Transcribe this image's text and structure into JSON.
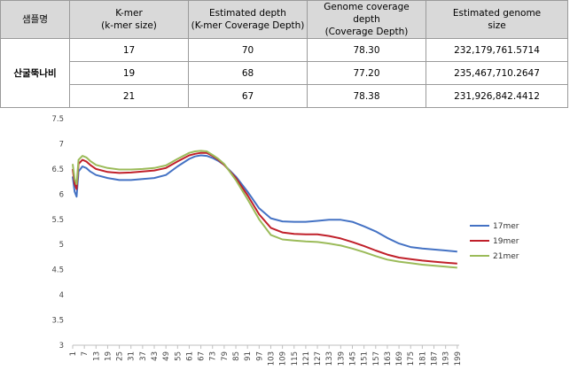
{
  "table": {
    "headers": [
      {
        "line1": "샘플명",
        "line2": ""
      },
      {
        "line1": "K-mer",
        "line2": "(k-mer size)"
      },
      {
        "line1": "Estimated depth",
        "line2": "(K-mer Coverage Depth)"
      },
      {
        "line1": "Genome coverage depth",
        "line2": "(Coverage Depth)"
      },
      {
        "line1": "Estimated genome",
        "line2": "size"
      }
    ],
    "sample": "산굴뚝나비",
    "rows": [
      {
        "kmer": "17",
        "depth": "70",
        "coverage": "78.30",
        "size": "232,179,761.5714"
      },
      {
        "kmer": "19",
        "depth": "68",
        "coverage": "77.20",
        "size": "235,467,710.2647"
      },
      {
        "kmer": "21",
        "depth": "67",
        "coverage": "78.38",
        "size": "231,926,842.4412"
      }
    ]
  },
  "chart_data": {
    "type": "line",
    "title": "",
    "xlabel": "",
    "ylabel": "",
    "ylim": [
      3,
      7.5
    ],
    "yticks": [
      "3",
      "3.5",
      "4",
      "4.5",
      "5",
      "5.5",
      "6",
      "6.5",
      "7",
      "7.5"
    ],
    "xlim": [
      1,
      200
    ],
    "xticks": [
      "1",
      "7",
      "13",
      "19",
      "25",
      "31",
      "37",
      "43",
      "49",
      "55",
      "61",
      "67",
      "73",
      "79",
      "85",
      "91",
      "97",
      "103",
      "109",
      "115",
      "121",
      "127",
      "133",
      "139",
      "145",
      "151",
      "157",
      "163",
      "169",
      "175",
      "181",
      "187",
      "193",
      "199"
    ],
    "grid": false,
    "legend": "right",
    "series": [
      {
        "name": "17mer",
        "color": "#4472c4",
        "x": [
          1,
          2,
          3,
          4,
          6,
          8,
          10,
          13,
          19,
          25,
          31,
          37,
          43,
          49,
          55,
          61,
          64,
          67,
          70,
          73,
          76,
          79,
          85,
          91,
          97,
          103,
          109,
          115,
          121,
          127,
          133,
          139,
          145,
          151,
          157,
          163,
          169,
          175,
          181,
          187,
          193,
          199
        ],
        "y": [
          6.35,
          6.05,
          5.95,
          6.45,
          6.55,
          6.52,
          6.45,
          6.38,
          6.32,
          6.28,
          6.28,
          6.3,
          6.32,
          6.38,
          6.55,
          6.7,
          6.75,
          6.77,
          6.76,
          6.72,
          6.66,
          6.58,
          6.35,
          6.05,
          5.72,
          5.52,
          5.46,
          5.45,
          5.45,
          5.47,
          5.49,
          5.49,
          5.45,
          5.36,
          5.26,
          5.13,
          5.02,
          4.95,
          4.92,
          4.9,
          4.88,
          4.86
        ]
      },
      {
        "name": "19mer",
        "color": "#c0202a",
        "x": [
          1,
          2,
          3,
          4,
          6,
          8,
          10,
          13,
          19,
          25,
          31,
          37,
          43,
          49,
          55,
          61,
          64,
          67,
          70,
          73,
          76,
          79,
          85,
          91,
          97,
          103,
          109,
          115,
          121,
          127,
          133,
          139,
          145,
          151,
          157,
          163,
          169,
          175,
          181,
          187,
          193,
          199
        ],
        "y": [
          6.5,
          6.2,
          6.1,
          6.6,
          6.68,
          6.65,
          6.58,
          6.5,
          6.44,
          6.42,
          6.43,
          6.45,
          6.47,
          6.52,
          6.65,
          6.77,
          6.8,
          6.82,
          6.82,
          6.76,
          6.68,
          6.58,
          6.32,
          5.98,
          5.6,
          5.33,
          5.24,
          5.21,
          5.2,
          5.2,
          5.17,
          5.12,
          5.05,
          4.97,
          4.88,
          4.8,
          4.74,
          4.71,
          4.68,
          4.66,
          4.64,
          4.62
        ]
      },
      {
        "name": "21mer",
        "color": "#9bbb59",
        "x": [
          1,
          2,
          3,
          4,
          6,
          8,
          10,
          13,
          19,
          25,
          31,
          37,
          43,
          49,
          55,
          61,
          64,
          67,
          70,
          73,
          76,
          79,
          85,
          91,
          97,
          103,
          109,
          115,
          121,
          127,
          133,
          139,
          145,
          151,
          157,
          163,
          169,
          175,
          181,
          187,
          193,
          199
        ],
        "y": [
          6.6,
          6.3,
          6.2,
          6.68,
          6.76,
          6.73,
          6.66,
          6.58,
          6.52,
          6.49,
          6.49,
          6.5,
          6.52,
          6.57,
          6.7,
          6.82,
          6.85,
          6.86,
          6.85,
          6.78,
          6.7,
          6.6,
          6.28,
          5.9,
          5.5,
          5.19,
          5.1,
          5.08,
          5.06,
          5.05,
          5.02,
          4.98,
          4.92,
          4.85,
          4.77,
          4.7,
          4.66,
          4.63,
          4.6,
          4.58,
          4.56,
          4.54
        ]
      }
    ]
  }
}
